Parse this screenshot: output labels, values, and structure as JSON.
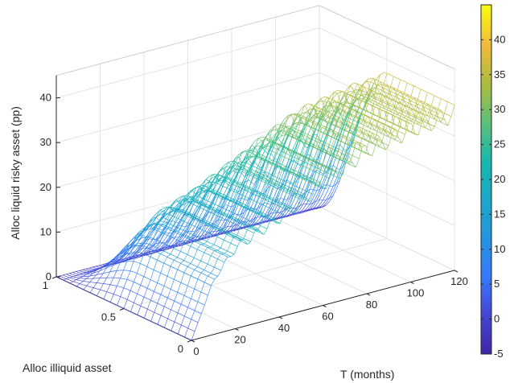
{
  "chart_data": {
    "type": "surface",
    "xlabel": "T (months)",
    "ylabel": "Alloc illiquid asset",
    "zlabel": "Alloc liquid risky asset (pp)",
    "xlim": [
      0,
      120
    ],
    "ylim": [
      0,
      1
    ],
    "zlim": [
      0,
      45
    ],
    "x_ticks": [
      "0",
      "20",
      "40",
      "60",
      "80",
      "100",
      "120"
    ],
    "y_ticks": [
      "0",
      "0.5",
      "1"
    ],
    "z_ticks": [
      "0",
      "10",
      "20",
      "30",
      "40"
    ],
    "grid": true,
    "colormap": "parula",
    "colorbar": {
      "location": "right",
      "range": [
        -5,
        45
      ],
      "ticks": [
        "-5",
        "0",
        "5",
        "10",
        "15",
        "20",
        "25",
        "30",
        "35",
        "40"
      ]
    },
    "description_points": {
      "T": [
        0,
        10,
        20,
        40,
        60,
        80,
        100,
        120
      ],
      "at_alloc_0_5": [
        0,
        12,
        18,
        22,
        27,
        32,
        34,
        35
      ],
      "at_alloc_1_0": [
        0,
        0,
        0,
        0,
        0,
        0,
        0,
        0
      ]
    },
    "colors": {
      "low": "#3e26a8",
      "mid": "#12bdb8",
      "high": "#f9fb0e",
      "grid": "#dedede",
      "axis": "#262626"
    }
  }
}
